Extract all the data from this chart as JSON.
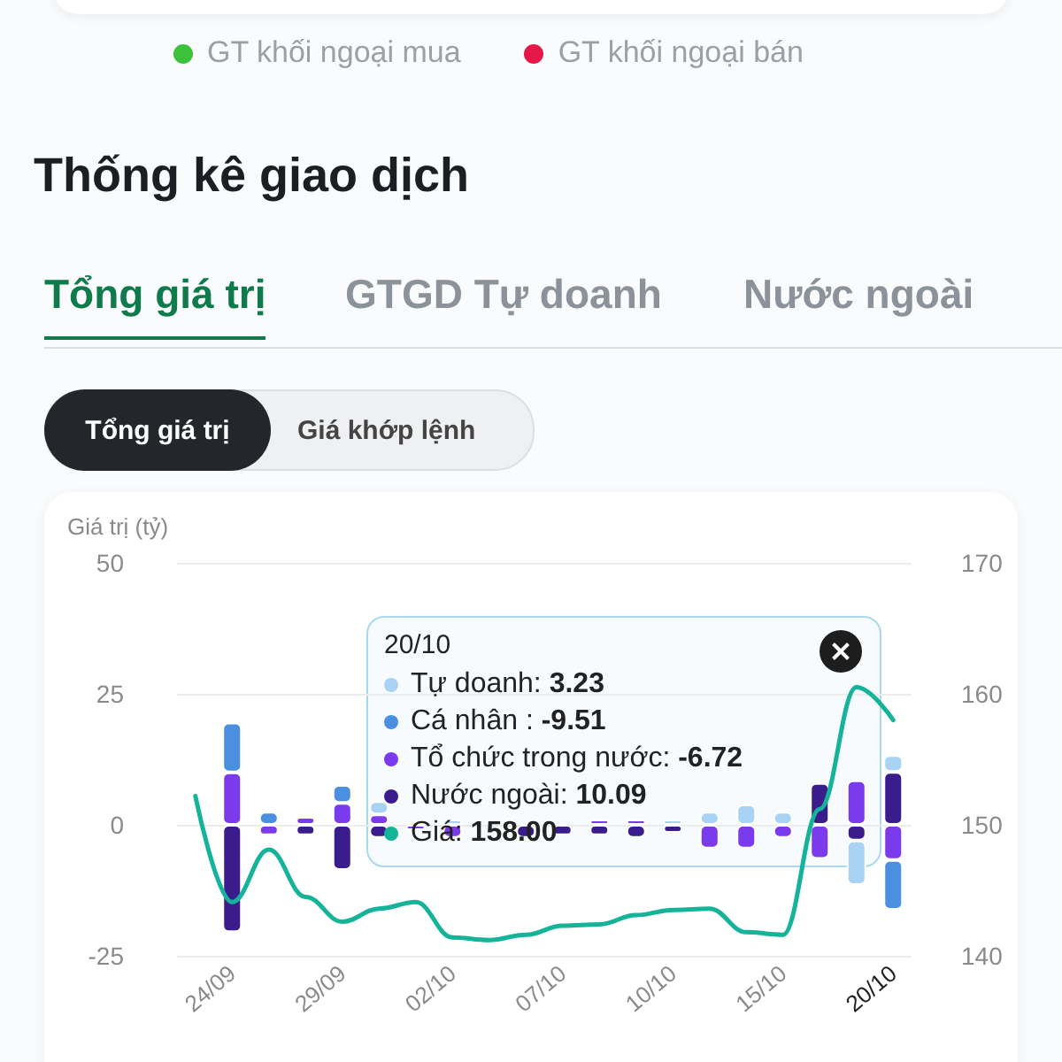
{
  "chart_data": {
    "type": "bar",
    "stacked": true,
    "title": "Thống kê giao dịch",
    "ylabel": "Giá trị (tỷ)",
    "annotations": [
      "GT khối ngoại mua",
      "GT khối ngoại bán",
      "Tổng giá trị",
      "GTGD Tự doanh",
      "Nước ngoài",
      "Tổng giá trị",
      "Giá khớp lệnh",
      "20/10",
      "Tự doanh: 3.23",
      "Cá nhân : -9.51",
      "Tổ chức trong nước: -6.72",
      "Nước ngoài: 10.09",
      "Giá: 158.00"
    ],
    "categories": [
      null,
      "24/09",
      null,
      null,
      "29/09",
      null,
      null,
      "02/10",
      null,
      null,
      "07/10",
      null,
      null,
      "10/10",
      null,
      null,
      "15/10",
      null,
      null,
      "20/10"
    ],
    "series": [
      {
        "color": "#3a1c8c",
        "values": [
          null,
          -20.5,
          null,
          -2,
          -8.6,
          -2.5,
          null,
          null,
          null,
          -2.5,
          -2,
          -2,
          -2.5,
          -1.5,
          null,
          null,
          null,
          8,
          -3,
          10.09
        ]
      },
      {
        "color": "#7c3aed",
        "values": [
          null,
          10,
          -2,
          1.5,
          4.2,
          2,
          -1,
          -2.5,
          null,
          null,
          null,
          1,
          1,
          null,
          -4.5,
          -4.5,
          -2.5,
          -6.5,
          8.5,
          -6.72
        ]
      },
      {
        "color": "#4a8fe0",
        "values": [
          0.5,
          9.5,
          2.5,
          null,
          3.4,
          null,
          null,
          null,
          null,
          null,
          null,
          null,
          null,
          null,
          null,
          null,
          null,
          null,
          null,
          -9.51
        ]
      },
      {
        "color": "#a9d3f5",
        "values": [
          null,
          null,
          null,
          null,
          null,
          2.5,
          null,
          1,
          null,
          null,
          null,
          null,
          null,
          1,
          2.5,
          3.9,
          2.5,
          null,
          -8.5,
          3.23
        ]
      },
      {
        "type": "line",
        "axis": "y2",
        "color": "#14b39a",
        "values": [
          152.2,
          144.1,
          148.1,
          144.5,
          142.6,
          143.6,
          144.1,
          141.4,
          141.2,
          141.6,
          142.3,
          142.4,
          143.1,
          143.5,
          143.6,
          141.8,
          141.6,
          151.2,
          160.5,
          158.0
        ]
      }
    ],
    "ylim": [
      -25,
      50
    ],
    "yticks": [
      -25,
      0,
      25,
      50
    ],
    "y2lim": [
      140,
      170
    ],
    "y2ticks": [
      140,
      150,
      160,
      170
    ],
    "grid": "y",
    "marker": "none",
    "line_style": "solid"
  }
}
